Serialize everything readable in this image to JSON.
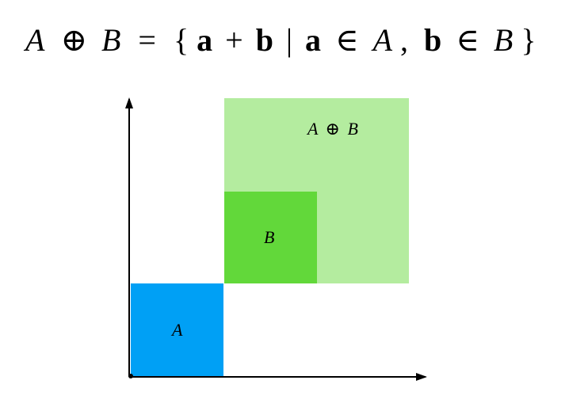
{
  "formula": {
    "lhs_a": "A",
    "oplus": "⊕",
    "lhs_b": "B",
    "equals": "=",
    "lbrace": "{",
    "vec_a": "a",
    "plus": "+",
    "vec_b": "b",
    "bar": "|",
    "vec_a2": "a",
    "in1": "∈",
    "set_a": "A",
    "comma": ",",
    "vec_b2": "b",
    "in2": "∈",
    "set_b": "B",
    "rbrace": "}"
  },
  "regions": {
    "a_label": "A",
    "b_label": "B",
    "sum_label_a": "A",
    "sum_label_oplus": "⊕",
    "sum_label_b": "B"
  },
  "colors": {
    "region_a": "#00A0F5",
    "region_b": "#62D83A",
    "region_sum": "#B4EC9F",
    "axis": "#000000",
    "text": "#000000"
  }
}
